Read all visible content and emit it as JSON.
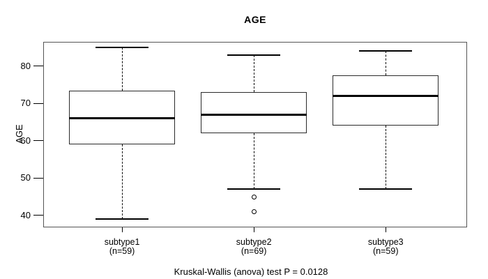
{
  "chart_data": {
    "type": "boxplot",
    "title": "AGE",
    "ylabel": "AGE",
    "xlabel": "",
    "ylim": [
      36.8,
      86.5
    ],
    "yticks": [
      40,
      50,
      60,
      70,
      80
    ],
    "grid": false,
    "legend": null,
    "groups": [
      {
        "label": "subtype1",
        "sublabel": "(n=59)",
        "n": 59,
        "whisker_low": 39,
        "q1": 59,
        "median": 66,
        "q3": 73.5,
        "whisker_high": 85,
        "outliers": []
      },
      {
        "label": "subtype2",
        "sublabel": "(n=69)",
        "n": 69,
        "whisker_low": 47,
        "q1": 62,
        "median": 67,
        "q3": 73,
        "whisker_high": 83,
        "outliers": [
          45,
          41
        ]
      },
      {
        "label": "subtype3",
        "sublabel": "(n=59)",
        "n": 59,
        "whisker_low": 47,
        "q1": 64,
        "median": 72,
        "q3": 77.5,
        "whisker_high": 84,
        "outliers": []
      }
    ],
    "annotation": "Kruskal-Wallis (anova) test P = 0.0128"
  },
  "colors": {
    "background": "#ffffff",
    "frame": "#555555",
    "line": "#000000",
    "text": "#000000"
  }
}
